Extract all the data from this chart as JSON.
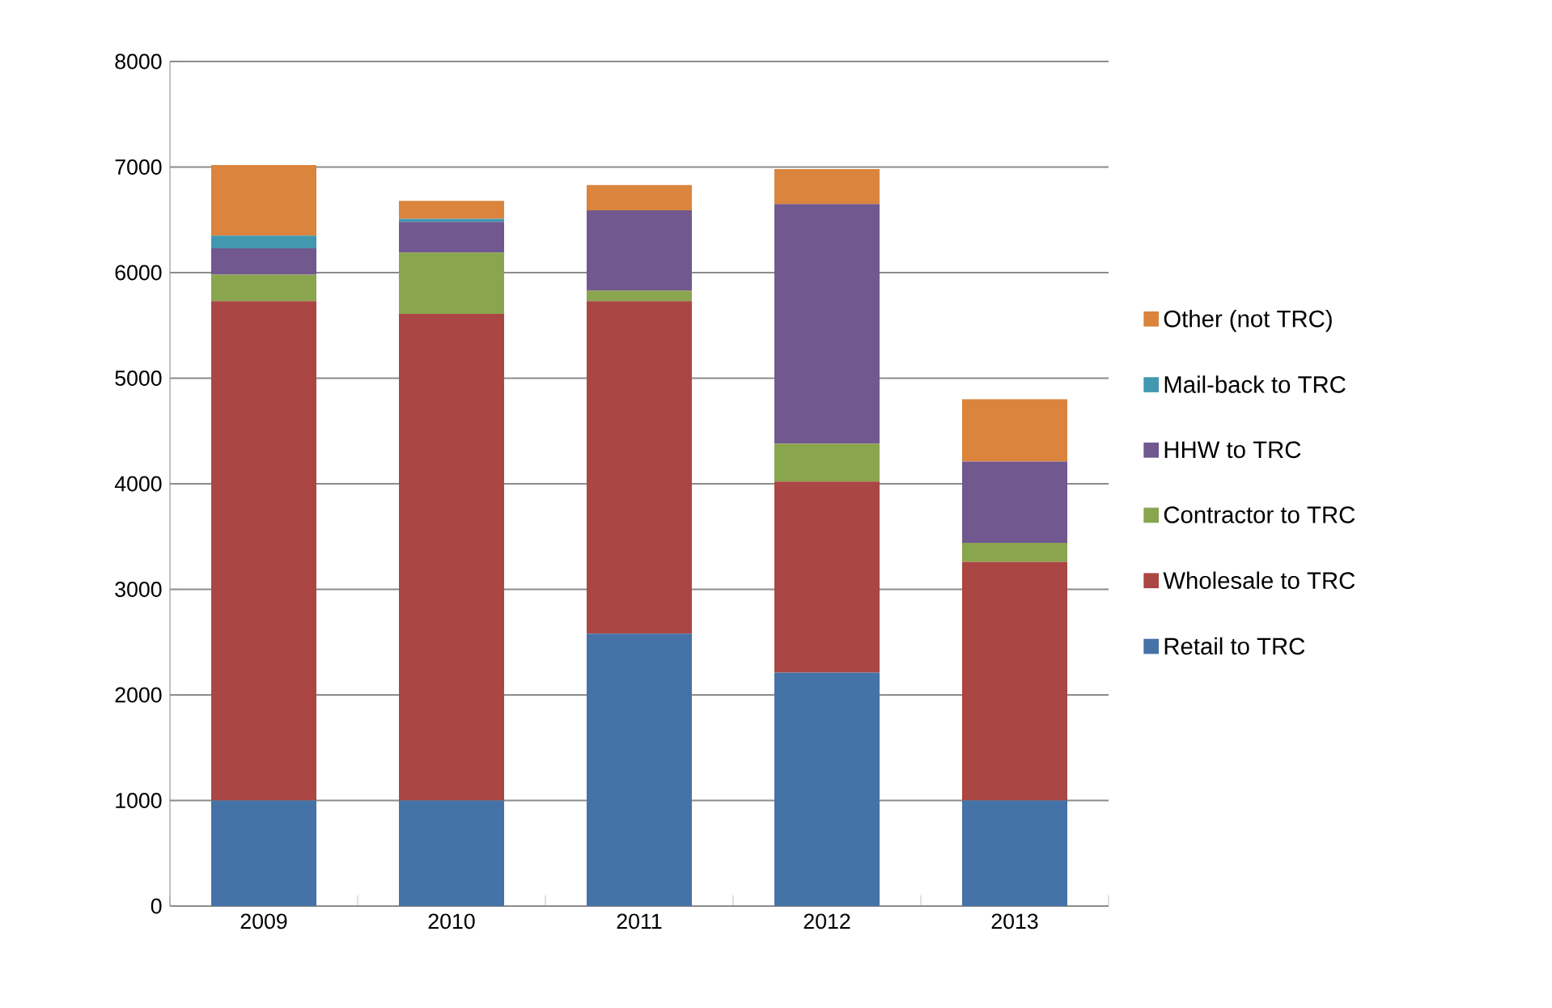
{
  "chart_data": {
    "type": "bar",
    "stacked": true,
    "categories": [
      "2009",
      "2010",
      "2011",
      "2012",
      "2013"
    ],
    "series": [
      {
        "name": "Retail to TRC",
        "color": "#4572a7",
        "values": [
          1000,
          1000,
          2580,
          2210,
          1000
        ]
      },
      {
        "name": "Wholesale to TRC",
        "color": "#aa4643",
        "values": [
          4730,
          4610,
          3150,
          1810,
          2260
        ]
      },
      {
        "name": "Contractor to TRC",
        "color": "#89a54e",
        "values": [
          250,
          580,
          100,
          360,
          180
        ]
      },
      {
        "name": "HHW to TRC",
        "color": "#71588f",
        "values": [
          250,
          290,
          760,
          2270,
          770
        ]
      },
      {
        "name": "Mail-back to TRC",
        "color": "#4198af",
        "values": [
          120,
          30,
          0,
          0,
          0
        ]
      },
      {
        "name": "Other (not TRC)",
        "color": "#db843d",
        "values": [
          670,
          170,
          240,
          330,
          590
        ]
      }
    ],
    "ylim": [
      0,
      8000
    ],
    "yticks": [
      0,
      1000,
      2000,
      3000,
      4000,
      5000,
      6000,
      7000,
      8000
    ],
    "grid": "y",
    "legend": "right"
  }
}
